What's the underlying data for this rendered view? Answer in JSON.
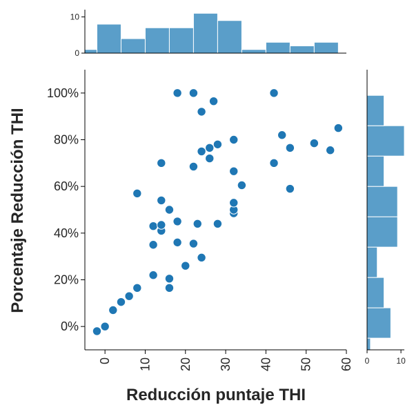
{
  "chart_data": {
    "type": "scatter",
    "xlabel": "Reducción puntaje THI",
    "ylabel": "Porcentaje Reducción THI",
    "xlim": [
      -5,
      60
    ],
    "ylim": [
      -10,
      110
    ],
    "x_ticks": [
      0,
      10,
      20,
      30,
      40,
      50,
      60
    ],
    "y_ticks": [
      0,
      20,
      40,
      60,
      80,
      100
    ],
    "y_tick_labels": [
      "0%",
      "20%",
      "40%",
      "60%",
      "80%",
      "100%"
    ],
    "grid": false,
    "colors": {
      "points": "#1f77b4",
      "hist": "#5a9ec9"
    },
    "points": [
      {
        "x": -2,
        "y": -2
      },
      {
        "x": 0,
        "y": 0
      },
      {
        "x": 2,
        "y": 7
      },
      {
        "x": 4,
        "y": 10.5
      },
      {
        "x": 6,
        "y": 13
      },
      {
        "x": 8,
        "y": 16.5
      },
      {
        "x": 8,
        "y": 57
      },
      {
        "x": 12,
        "y": 22
      },
      {
        "x": 12,
        "y": 35
      },
      {
        "x": 12,
        "y": 43
      },
      {
        "x": 14,
        "y": 41
      },
      {
        "x": 14,
        "y": 43.5
      },
      {
        "x": 14,
        "y": 54
      },
      {
        "x": 14,
        "y": 70
      },
      {
        "x": 16,
        "y": 16.5
      },
      {
        "x": 16,
        "y": 20.5
      },
      {
        "x": 16,
        "y": 50
      },
      {
        "x": 18,
        "y": 36
      },
      {
        "x": 18,
        "y": 45
      },
      {
        "x": 18,
        "y": 100
      },
      {
        "x": 20,
        "y": 26
      },
      {
        "x": 22,
        "y": 35.5
      },
      {
        "x": 22,
        "y": 68.5
      },
      {
        "x": 22,
        "y": 100
      },
      {
        "x": 23,
        "y": 44
      },
      {
        "x": 24,
        "y": 29.5
      },
      {
        "x": 24,
        "y": 75
      },
      {
        "x": 24,
        "y": 92
      },
      {
        "x": 26,
        "y": 72
      },
      {
        "x": 26,
        "y": 76.5
      },
      {
        "x": 27,
        "y": 96.5
      },
      {
        "x": 28,
        "y": 44
      },
      {
        "x": 28,
        "y": 78
      },
      {
        "x": 32,
        "y": 48.5
      },
      {
        "x": 32,
        "y": 50
      },
      {
        "x": 32,
        "y": 53
      },
      {
        "x": 32,
        "y": 66.5
      },
      {
        "x": 32,
        "y": 80
      },
      {
        "x": 34,
        "y": 60.5
      },
      {
        "x": 42,
        "y": 70
      },
      {
        "x": 42,
        "y": 100
      },
      {
        "x": 44,
        "y": 82
      },
      {
        "x": 46,
        "y": 59
      },
      {
        "x": 46,
        "y": 76.5
      },
      {
        "x": 52,
        "y": 78.5
      },
      {
        "x": 56,
        "y": 75.5
      },
      {
        "x": 58,
        "y": 85
      }
    ],
    "marginal_x": {
      "ylim": [
        0,
        12
      ],
      "ticks": [
        0,
        10
      ],
      "bins": [
        {
          "start": -5,
          "end": -2,
          "count": 1
        },
        {
          "start": -2,
          "end": 4,
          "count": 8
        },
        {
          "start": 4,
          "end": 10,
          "count": 4
        },
        {
          "start": 10,
          "end": 16,
          "count": 7
        },
        {
          "start": 16,
          "end": 22,
          "count": 7
        },
        {
          "start": 22,
          "end": 28,
          "count": 11
        },
        {
          "start": 28,
          "end": 34,
          "count": 9
        },
        {
          "start": 34,
          "end": 40,
          "count": 1
        },
        {
          "start": 40,
          "end": 46,
          "count": 3
        },
        {
          "start": 46,
          "end": 52,
          "count": 2
        },
        {
          "start": 52,
          "end": 58,
          "count": 3
        }
      ]
    },
    "marginal_y": {
      "xlim": [
        0,
        11
      ],
      "ticks": [
        0,
        10
      ],
      "bins": [
        {
          "start": -10,
          "end": -5,
          "count": 1
        },
        {
          "start": -5,
          "end": 8,
          "count": 7
        },
        {
          "start": 8,
          "end": 21,
          "count": 5
        },
        {
          "start": 21,
          "end": 34,
          "count": 3
        },
        {
          "start": 34,
          "end": 47,
          "count": 9
        },
        {
          "start": 47,
          "end": 60,
          "count": 9
        },
        {
          "start": 60,
          "end": 73,
          "count": 5
        },
        {
          "start": 73,
          "end": 86,
          "count": 11
        },
        {
          "start": 86,
          "end": 99,
          "count": 5
        }
      ]
    }
  }
}
